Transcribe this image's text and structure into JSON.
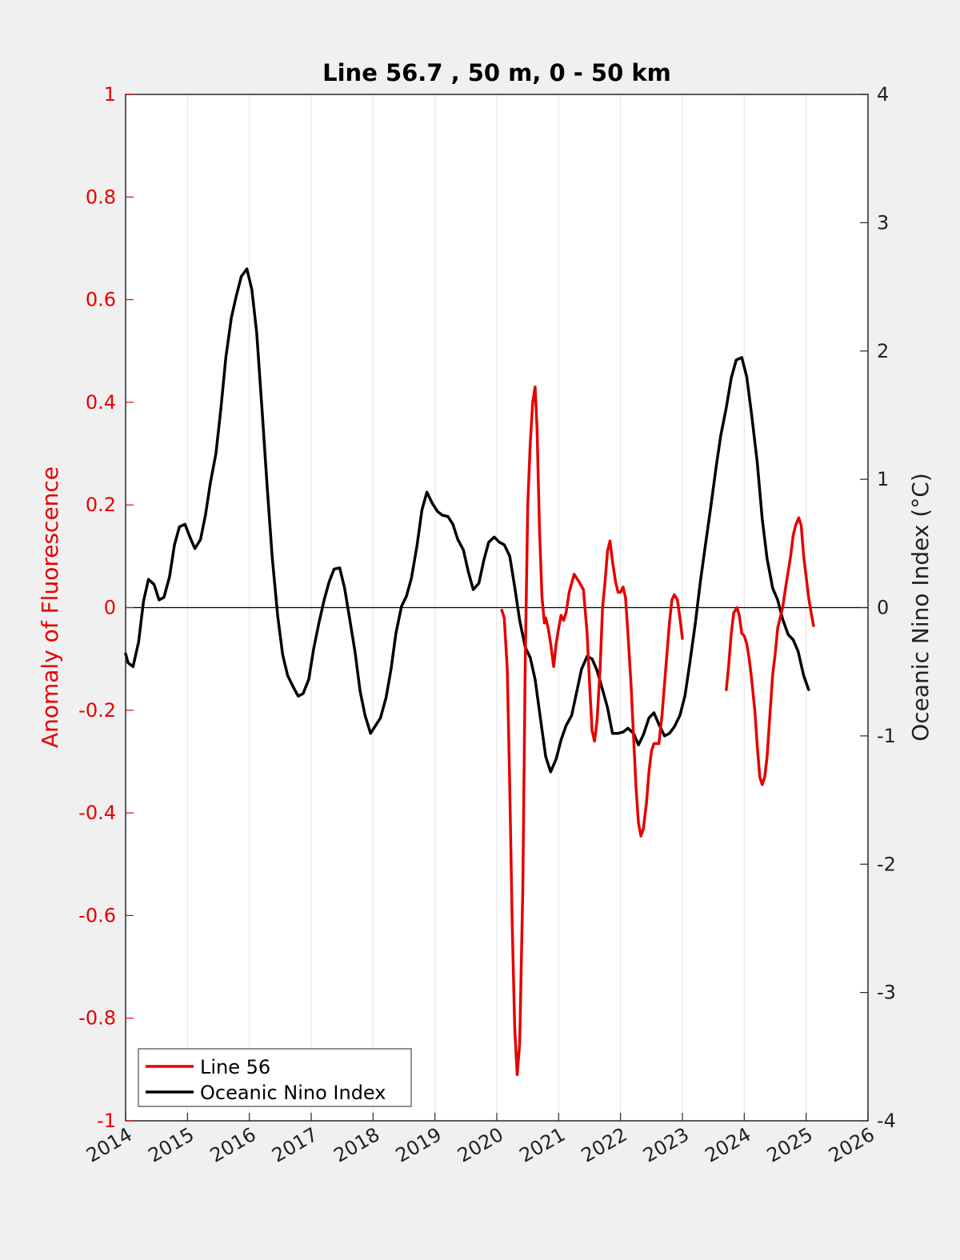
{
  "chart_data": {
    "type": "line",
    "title": "Line 56.7 , 50 m, 0 - 50 km",
    "ylabel": "Anomaly of Fluorescence",
    "y2label": "Oceanic Nino Index (°C)",
    "xlim": [
      2014,
      2026
    ],
    "ylim": [
      -1,
      1
    ],
    "y2lim": [
      -4,
      4
    ],
    "x_ticks": [
      "2014",
      "2015",
      "2016",
      "2017",
      "2018",
      "2019",
      "2020",
      "2021",
      "2022",
      "2023",
      "2024",
      "2025",
      "2026"
    ],
    "y_ticks": [
      "-1",
      "-0.8",
      "-0.6",
      "-0.4",
      "-0.2",
      "0",
      "0.2",
      "0.4",
      "0.6",
      "0.8",
      "1"
    ],
    "y2_ticks": [
      "-4",
      "-3",
      "-2",
      "-1",
      "0",
      "1",
      "2",
      "3",
      "4"
    ],
    "grid": "vertical",
    "legend_position": "bottom-left",
    "colors": {
      "line56": "#e60000",
      "oni": "#000000",
      "left_axis": "#e60000",
      "background": "#f0f0f0",
      "plot_bg": "#ffffff"
    },
    "series": [
      {
        "name": "Line 56",
        "axis": "left",
        "color": "#e60000",
        "segments": [
          [
            [
              2020.08,
              -0.005
            ],
            [
              2020.12,
              -0.02
            ],
            [
              2020.17,
              -0.12
            ],
            [
              2020.21,
              -0.35
            ],
            [
              2020.25,
              -0.62
            ],
            [
              2020.29,
              -0.82
            ],
            [
              2020.33,
              -0.91
            ],
            [
              2020.37,
              -0.85
            ],
            [
              2020.42,
              -0.55
            ],
            [
              2020.46,
              -0.1
            ],
            [
              2020.5,
              0.2
            ],
            [
              2020.54,
              0.32
            ],
            [
              2020.58,
              0.4
            ],
            [
              2020.62,
              0.43
            ],
            [
              2020.65,
              0.35
            ],
            [
              2020.69,
              0.15
            ],
            [
              2020.73,
              0.02
            ],
            [
              2020.77,
              -0.03
            ],
            [
              2020.79,
              -0.02
            ],
            [
              2020.83,
              -0.04
            ],
            [
              2020.87,
              -0.07
            ],
            [
              2020.92,
              -0.115
            ],
            [
              2020.96,
              -0.07
            ],
            [
              2021.0,
              -0.04
            ],
            [
              2021.04,
              -0.015
            ],
            [
              2021.08,
              -0.025
            ],
            [
              2021.12,
              -0.01
            ],
            [
              2021.17,
              0.03
            ],
            [
              2021.25,
              0.065
            ],
            [
              2021.33,
              0.05
            ],
            [
              2021.4,
              0.035
            ],
            [
              2021.46,
              -0.05
            ],
            [
              2021.5,
              -0.15
            ],
            [
              2021.54,
              -0.24
            ],
            [
              2021.58,
              -0.26
            ],
            [
              2021.62,
              -0.22
            ],
            [
              2021.67,
              -0.12
            ],
            [
              2021.71,
              0.0
            ],
            [
              2021.75,
              0.05
            ],
            [
              2021.79,
              0.11
            ],
            [
              2021.83,
              0.13
            ],
            [
              2021.87,
              0.09
            ],
            [
              2021.92,
              0.05
            ],
            [
              2021.96,
              0.03
            ],
            [
              2022.0,
              0.03
            ],
            [
              2022.04,
              0.04
            ],
            [
              2022.08,
              0.02
            ],
            [
              2022.12,
              -0.05
            ],
            [
              2022.17,
              -0.15
            ],
            [
              2022.21,
              -0.25
            ],
            [
              2022.25,
              -0.35
            ],
            [
              2022.29,
              -0.42
            ],
            [
              2022.33,
              -0.445
            ],
            [
              2022.37,
              -0.43
            ],
            [
              2022.42,
              -0.38
            ],
            [
              2022.46,
              -0.32
            ],
            [
              2022.5,
              -0.28
            ],
            [
              2022.54,
              -0.265
            ],
            [
              2022.58,
              -0.265
            ],
            [
              2022.62,
              -0.265
            ],
            [
              2022.67,
              -0.21
            ],
            [
              2022.71,
              -0.15
            ],
            [
              2022.75,
              -0.09
            ],
            [
              2022.79,
              -0.03
            ],
            [
              2022.83,
              0.015
            ],
            [
              2022.87,
              0.025
            ],
            [
              2022.92,
              0.015
            ],
            [
              2022.96,
              -0.02
            ],
            [
              2023.0,
              -0.06
            ]
          ],
          [
            [
              2023.71,
              -0.16
            ],
            [
              2023.75,
              -0.11
            ],
            [
              2023.79,
              -0.05
            ],
            [
              2023.83,
              -0.01
            ],
            [
              2023.88,
              0.0
            ],
            [
              2023.92,
              -0.015
            ],
            [
              2023.96,
              -0.05
            ],
            [
              2024.0,
              -0.055
            ],
            [
              2024.04,
              -0.07
            ],
            [
              2024.08,
              -0.1
            ],
            [
              2024.12,
              -0.14
            ],
            [
              2024.17,
              -0.2
            ],
            [
              2024.21,
              -0.27
            ],
            [
              2024.25,
              -0.33
            ],
            [
              2024.29,
              -0.345
            ],
            [
              2024.33,
              -0.33
            ],
            [
              2024.37,
              -0.29
            ],
            [
              2024.42,
              -0.2
            ],
            [
              2024.46,
              -0.13
            ],
            [
              2024.5,
              -0.09
            ],
            [
              2024.54,
              -0.04
            ],
            [
              2024.58,
              -0.02
            ],
            [
              2024.62,
              0.0
            ],
            [
              2024.67,
              0.04
            ],
            [
              2024.71,
              0.07
            ],
            [
              2024.75,
              0.1
            ],
            [
              2024.79,
              0.14
            ],
            [
              2024.83,
              0.16
            ],
            [
              2024.88,
              0.175
            ],
            [
              2024.92,
              0.16
            ],
            [
              2024.96,
              0.1
            ],
            [
              2025.0,
              0.06
            ],
            [
              2025.04,
              0.02
            ],
            [
              2025.08,
              -0.01
            ],
            [
              2025.12,
              -0.035
            ]
          ]
        ]
      },
      {
        "name": "Oceanic Nino Index",
        "axis": "right",
        "color": "#000000",
        "segments": [
          [
            [
              2014.0,
              -0.36
            ],
            [
              2014.04,
              -0.43
            ],
            [
              2014.12,
              -0.46
            ],
            [
              2014.21,
              -0.27
            ],
            [
              2014.29,
              0.05
            ],
            [
              2014.37,
              0.22
            ],
            [
              2014.46,
              0.18
            ],
            [
              2014.54,
              0.06
            ],
            [
              2014.62,
              0.08
            ],
            [
              2014.71,
              0.24
            ],
            [
              2014.79,
              0.49
            ],
            [
              2014.87,
              0.63
            ],
            [
              2014.96,
              0.65
            ],
            [
              2015.04,
              0.55
            ],
            [
              2015.12,
              0.46
            ],
            [
              2015.21,
              0.53
            ],
            [
              2015.29,
              0.72
            ],
            [
              2015.37,
              0.97
            ],
            [
              2015.46,
              1.2
            ],
            [
              2015.54,
              1.55
            ],
            [
              2015.62,
              1.95
            ],
            [
              2015.71,
              2.26
            ],
            [
              2015.79,
              2.43
            ],
            [
              2015.87,
              2.58
            ],
            [
              2015.96,
              2.64
            ],
            [
              2016.04,
              2.48
            ],
            [
              2016.12,
              2.14
            ],
            [
              2016.21,
              1.51
            ],
            [
              2016.29,
              0.93
            ],
            [
              2016.37,
              0.39
            ],
            [
              2016.46,
              -0.07
            ],
            [
              2016.54,
              -0.37
            ],
            [
              2016.62,
              -0.53
            ],
            [
              2016.71,
              -0.62
            ],
            [
              2016.79,
              -0.69
            ],
            [
              2016.87,
              -0.67
            ],
            [
              2016.96,
              -0.56
            ],
            [
              2017.04,
              -0.32
            ],
            [
              2017.12,
              -0.13
            ],
            [
              2017.21,
              0.06
            ],
            [
              2017.29,
              0.2
            ],
            [
              2017.37,
              0.3
            ],
            [
              2017.46,
              0.31
            ],
            [
              2017.54,
              0.15
            ],
            [
              2017.62,
              -0.08
            ],
            [
              2017.71,
              -0.35
            ],
            [
              2017.79,
              -0.65
            ],
            [
              2017.87,
              -0.84
            ],
            [
              2017.96,
              -0.98
            ],
            [
              2018.04,
              -0.92
            ],
            [
              2018.12,
              -0.86
            ],
            [
              2018.21,
              -0.7
            ],
            [
              2018.29,
              -0.48
            ],
            [
              2018.37,
              -0.2
            ],
            [
              2018.46,
              0.01
            ],
            [
              2018.54,
              0.09
            ],
            [
              2018.62,
              0.23
            ],
            [
              2018.71,
              0.48
            ],
            [
              2018.79,
              0.76
            ],
            [
              2018.87,
              0.9
            ],
            [
              2018.96,
              0.81
            ],
            [
              2019.04,
              0.75
            ],
            [
              2019.12,
              0.72
            ],
            [
              2019.21,
              0.71
            ],
            [
              2019.29,
              0.65
            ],
            [
              2019.37,
              0.53
            ],
            [
              2019.46,
              0.45
            ],
            [
              2019.54,
              0.28
            ],
            [
              2019.62,
              0.14
            ],
            [
              2019.71,
              0.19
            ],
            [
              2019.79,
              0.37
            ],
            [
              2019.87,
              0.51
            ],
            [
              2019.96,
              0.55
            ],
            [
              2020.04,
              0.51
            ],
            [
              2020.12,
              0.49
            ],
            [
              2020.21,
              0.4
            ],
            [
              2020.29,
              0.16
            ],
            [
              2020.37,
              -0.1
            ],
            [
              2020.46,
              -0.31
            ],
            [
              2020.54,
              -0.39
            ],
            [
              2020.62,
              -0.56
            ],
            [
              2020.71,
              -0.88
            ],
            [
              2020.79,
              -1.16
            ],
            [
              2020.87,
              -1.28
            ],
            [
              2020.96,
              -1.18
            ],
            [
              2021.04,
              -1.03
            ],
            [
              2021.12,
              -0.92
            ],
            [
              2021.21,
              -0.84
            ],
            [
              2021.29,
              -0.66
            ],
            [
              2021.37,
              -0.48
            ],
            [
              2021.46,
              -0.38
            ],
            [
              2021.54,
              -0.4
            ],
            [
              2021.62,
              -0.49
            ],
            [
              2021.71,
              -0.64
            ],
            [
              2021.79,
              -0.78
            ],
            [
              2021.87,
              -0.98
            ],
            [
              2021.96,
              -0.98
            ],
            [
              2022.04,
              -0.97
            ],
            [
              2022.12,
              -0.94
            ],
            [
              2022.21,
              -0.98
            ],
            [
              2022.29,
              -1.07
            ],
            [
              2022.37,
              -0.99
            ],
            [
              2022.46,
              -0.86
            ],
            [
              2022.54,
              -0.82
            ],
            [
              2022.62,
              -0.91
            ],
            [
              2022.71,
              -1.0
            ],
            [
              2022.79,
              -0.98
            ],
            [
              2022.87,
              -0.93
            ],
            [
              2022.96,
              -0.84
            ],
            [
              2023.04,
              -0.69
            ],
            [
              2023.12,
              -0.43
            ],
            [
              2023.21,
              -0.12
            ],
            [
              2023.29,
              0.2
            ],
            [
              2023.37,
              0.48
            ],
            [
              2023.46,
              0.79
            ],
            [
              2023.54,
              1.08
            ],
            [
              2023.62,
              1.34
            ],
            [
              2023.71,
              1.56
            ],
            [
              2023.79,
              1.79
            ],
            [
              2023.87,
              1.93
            ],
            [
              2023.96,
              1.95
            ],
            [
              2024.04,
              1.8
            ],
            [
              2024.12,
              1.5
            ],
            [
              2024.21,
              1.13
            ],
            [
              2024.29,
              0.69
            ],
            [
              2024.37,
              0.38
            ],
            [
              2024.46,
              0.15
            ],
            [
              2024.54,
              0.06
            ],
            [
              2024.62,
              -0.09
            ],
            [
              2024.71,
              -0.21
            ],
            [
              2024.79,
              -0.25
            ],
            [
              2024.87,
              -0.34
            ],
            [
              2024.96,
              -0.53
            ],
            [
              2025.04,
              -0.64
            ]
          ]
        ]
      }
    ]
  }
}
